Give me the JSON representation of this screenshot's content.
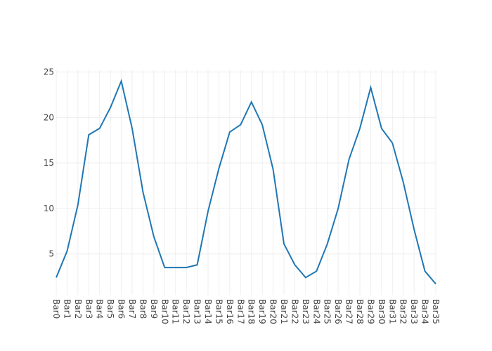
{
  "chart_data": {
    "type": "line",
    "categories": [
      "Bar0",
      "Bar1",
      "Bar2",
      "Bar3",
      "Bar4",
      "Bar5",
      "Bar6",
      "Bar7",
      "Bar8",
      "Bar9",
      "Bar10",
      "Bar11",
      "Bar12",
      "Bar13",
      "Bar14",
      "Bar15",
      "Bar16",
      "Bar17",
      "Bar18",
      "Bar19",
      "Bar20",
      "Bar21",
      "Bar22",
      "Bar23",
      "Bar24",
      "Bar25",
      "Bar26",
      "Bar27",
      "Bar28",
      "Bar29",
      "Bar30",
      "Bar31",
      "Bar32",
      "Bar33",
      "Bar34",
      "Bar35"
    ],
    "values": [
      2.4,
      5.3,
      10.4,
      18.1,
      18.8,
      21.1,
      24.0,
      18.8,
      11.8,
      6.9,
      3.5,
      3.5,
      3.5,
      3.8,
      9.7,
      14.4,
      18.4,
      19.2,
      21.7,
      19.2,
      14.3,
      6.1,
      3.8,
      2.4,
      3.1,
      6.1,
      10.0,
      15.4,
      18.8,
      23.3,
      18.8,
      17.2,
      12.9,
      7.7,
      3.1,
      1.7
    ],
    "color": "#1f77b4",
    "ylim": [
      0.5,
      25.2
    ],
    "yticks": [
      5,
      10,
      15,
      20,
      25
    ],
    "grid": true
  }
}
